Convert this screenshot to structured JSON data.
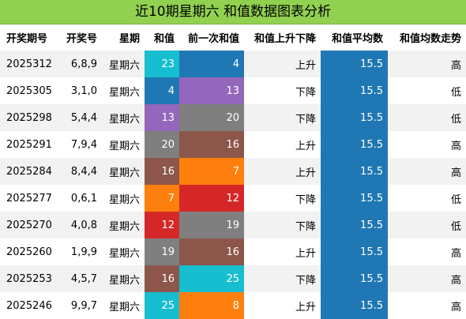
{
  "title": "近10期星期六 和值数据图表分析",
  "columns": [
    "开奖期号",
    "开奖号",
    "星期",
    "和值",
    "前一次和值",
    "和值上升下降",
    "和值平均数",
    "和值均数走势"
  ],
  "colors": {
    "title_bg": "#92d050",
    "avg_bg": "#1f77b4",
    "value_colors": {
      "4": "#1f77b4",
      "7": "#ff7f0e",
      "8": "#ff7f0e",
      "12": "#d62728",
      "13": "#9467bd",
      "16": "#8c564b",
      "19": "#7f7f7f",
      "20": "#7f7f7f",
      "23": "#17becf",
      "25": "#17becf"
    }
  },
  "rows": [
    {
      "id": "2025312",
      "nums": "6,8,9",
      "day": "星期六",
      "sum": "23",
      "prev": "4",
      "trend": "上升",
      "avg": "15.5",
      "level": "高"
    },
    {
      "id": "2025305",
      "nums": "3,1,0",
      "day": "星期六",
      "sum": "4",
      "prev": "13",
      "trend": "下降",
      "avg": "15.5",
      "level": "低"
    },
    {
      "id": "2025298",
      "nums": "5,4,4",
      "day": "星期六",
      "sum": "13",
      "prev": "20",
      "trend": "下降",
      "avg": "15.5",
      "level": "低"
    },
    {
      "id": "2025291",
      "nums": "7,9,4",
      "day": "星期六",
      "sum": "20",
      "prev": "16",
      "trend": "上升",
      "avg": "15.5",
      "level": "高"
    },
    {
      "id": "2025284",
      "nums": "8,4,4",
      "day": "星期六",
      "sum": "16",
      "prev": "7",
      "trend": "上升",
      "avg": "15.5",
      "level": "高"
    },
    {
      "id": "2025277",
      "nums": "0,6,1",
      "day": "星期六",
      "sum": "7",
      "prev": "12",
      "trend": "下降",
      "avg": "15.5",
      "level": "低"
    },
    {
      "id": "2025270",
      "nums": "4,0,8",
      "day": "星期六",
      "sum": "12",
      "prev": "19",
      "trend": "下降",
      "avg": "15.5",
      "level": "低"
    },
    {
      "id": "2025260",
      "nums": "1,9,9",
      "day": "星期六",
      "sum": "19",
      "prev": "16",
      "trend": "上升",
      "avg": "15.5",
      "level": "高"
    },
    {
      "id": "2025253",
      "nums": "4,5,7",
      "day": "星期六",
      "sum": "16",
      "prev": "25",
      "trend": "下降",
      "avg": "15.5",
      "level": "高"
    },
    {
      "id": "2025246",
      "nums": "9,9,7",
      "day": "星期六",
      "sum": "25",
      "prev": "8",
      "trend": "上升",
      "avg": "15.5",
      "level": "高"
    }
  ]
}
